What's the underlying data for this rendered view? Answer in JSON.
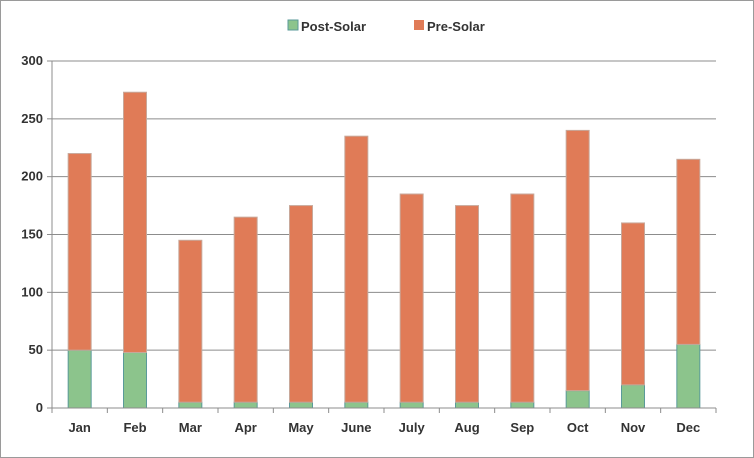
{
  "chart_data": {
    "type": "bar",
    "stacked": true,
    "title": "",
    "xlabel": "",
    "ylabel": "",
    "categories": [
      "Jan",
      "Feb",
      "Mar",
      "Apr",
      "May",
      "June",
      "July",
      "Aug",
      "Sep",
      "Oct",
      "Nov",
      "Dec"
    ],
    "series": [
      {
        "name": "Post-Solar",
        "color": "#8cc48c",
        "border_color": "#5a9a9a",
        "values": [
          50,
          48,
          5,
          5,
          5,
          5,
          5,
          5,
          5,
          15,
          20,
          55
        ]
      },
      {
        "name": "Pre-Solar",
        "color": "#e07b57",
        "border_color": "#c8a89a",
        "values": [
          170,
          225,
          140,
          160,
          170,
          230,
          180,
          170,
          180,
          225,
          140,
          160
        ]
      }
    ],
    "ylim": [
      0,
      300
    ],
    "yticks": [
      "0",
      "50",
      "100",
      "150",
      "200",
      "250",
      "300"
    ],
    "grid": true,
    "legend_position": "top-center"
  }
}
